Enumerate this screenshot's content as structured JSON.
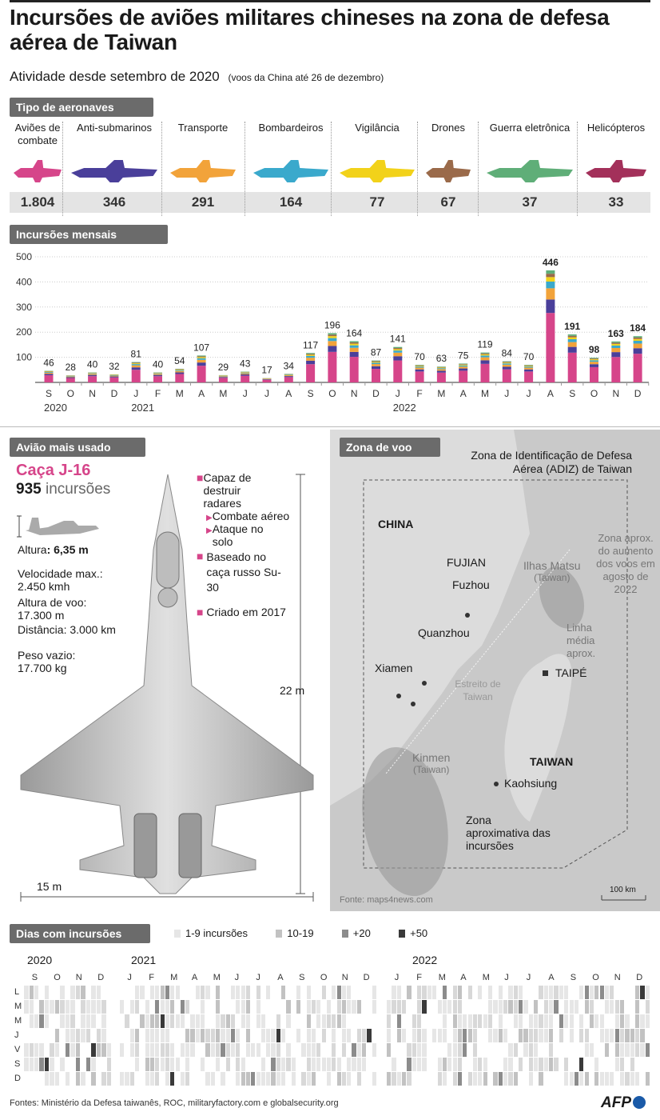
{
  "title": "Incursões de aviões militares chineses na zona de defesa aérea de Taiwan",
  "subtitle": "Atividade desde setembro de 2020",
  "subnote": "(voos da China até 26 de dezembro)",
  "aircraft_section": "Tipo de aeronaves",
  "aircraft": [
    {
      "label": "Aviões de combate",
      "count": "1.804",
      "color": "#d6458a"
    },
    {
      "label": "Anti-submarinos",
      "count": "346",
      "color": "#4a3f9a"
    },
    {
      "label": "Transporte",
      "count": "291",
      "color": "#f2a33a"
    },
    {
      "label": "Bombardeiros",
      "count": "164",
      "color": "#3aa9cc"
    },
    {
      "label": "Vigilância",
      "count": "77",
      "color": "#f2d21a"
    },
    {
      "label": "Drones",
      "count": "67",
      "color": "#9a6a4a"
    },
    {
      "label": "Guerra eletrônica",
      "count": "37",
      "color": "#5fae78"
    },
    {
      "label": "Helicópteros",
      "count": "33",
      "color": "#a3305a"
    }
  ],
  "monthly_section": "Incursões mensais",
  "chart_data": {
    "type": "bar",
    "categories": [
      "S",
      "O",
      "N",
      "D",
      "J",
      "F",
      "M",
      "A",
      "M",
      "J",
      "J",
      "A",
      "S",
      "O",
      "N",
      "D",
      "J",
      "F",
      "M",
      "A",
      "M",
      "J",
      "J",
      "A",
      "S",
      "O",
      "N",
      "D"
    ],
    "year_labels": [
      {
        "label": "2020",
        "index": 0
      },
      {
        "label": "2021",
        "index": 4
      },
      {
        "label": "2022",
        "index": 16
      }
    ],
    "values": [
      46,
      28,
      40,
      32,
      81,
      40,
      54,
      107,
      29,
      43,
      17,
      34,
      117,
      196,
      164,
      87,
      141,
      70,
      63,
      75,
      119,
      84,
      70,
      446,
      191,
      98,
      163,
      184
    ],
    "bold_values": [
      23,
      24,
      25,
      26,
      27
    ],
    "ylim": [
      0,
      500
    ],
    "yticks": [
      100,
      200,
      300,
      400,
      500
    ]
  },
  "plane_section": "Avião mais usado",
  "plane": {
    "name": "Caça J-16",
    "count": "935",
    "count_unit": "incursões",
    "height_label": "Altura",
    "height_value": ": 6,35 m",
    "speed": "Velocidade max.: 2.450 kmh",
    "altitude": "Altura de voo: 17.300 m",
    "distance": "Distância: 3.000 km",
    "weight": "Peso vazio: 17.700 kg",
    "length": "22 m",
    "wingspan": "15 m",
    "bullets": [
      {
        "text": "Capaz de destruir radares"
      },
      {
        "text": "Combate aéreo"
      },
      {
        "text": "Ataque no solo"
      },
      {
        "text": "Baseado no caça russo Su-30"
      },
      {
        "text": "Criado em 2017"
      }
    ]
  },
  "map_section": "Zona de voo",
  "map": {
    "adiz_label": "Zona de Identificação de Defesa Aérea (ADIZ) de Taiwan",
    "zone_aug_label": "Zona aprox. do aumento dos voos em agosto de 2022",
    "median_label": "Linha média aprox.",
    "strait_label": "Estreito de Taiwan",
    "china": "CHINA",
    "fujian": "FUJIAN",
    "fuzhou": "Fuzhou",
    "quanzhou": "Quanzhou",
    "xiamen": "Xiamen",
    "matsu": "Ilhas Matsu",
    "matsu_sub": "(Taiwan)",
    "kinmen": "Kinmen",
    "kinmen_sub": "(Taiwan)",
    "taipei": "TAIPÉ",
    "taiwan": "TAIWAN",
    "kaohsiung": "Kaohsiung",
    "incursion_zone": "Zona aproximativa das incursões",
    "scale": "100 km",
    "source": "Fonte: maps4news.com"
  },
  "days_section": "Dias com incursões",
  "days_legend": [
    {
      "label": "1-9 incursões",
      "color": "#e6e6e6"
    },
    {
      "label": "10-19",
      "color": "#c2c2c2"
    },
    {
      "label": "+20",
      "color": "#8c8c8c"
    },
    {
      "label": "+50",
      "color": "#3a3a3a"
    }
  ],
  "days_years": [
    "2020",
    "2021",
    "2022"
  ],
  "days_months_2020": [
    "S",
    "O",
    "N",
    "D"
  ],
  "days_months_2021": [
    "J",
    "F",
    "M",
    "A",
    "M",
    "J",
    "J",
    "A",
    "S",
    "O",
    "N",
    "D"
  ],
  "days_months_2022": [
    "J",
    "F",
    "M",
    "A",
    "M",
    "J",
    "J",
    "A",
    "S",
    "O",
    "N",
    "D"
  ],
  "days_weekdays": [
    "L",
    "M",
    "M",
    "J",
    "V",
    "S",
    "D"
  ],
  "footer": "Fontes: Ministério da Defesa taiwanês, ROC, militaryfactory.com e globalsecurity.org",
  "logo": "AFP",
  "stack_colors": [
    "#d6458a",
    "#4a3f9a",
    "#f2a33a",
    "#3aa9cc",
    "#f2d21a",
    "#9a6a4a",
    "#5fae78"
  ]
}
